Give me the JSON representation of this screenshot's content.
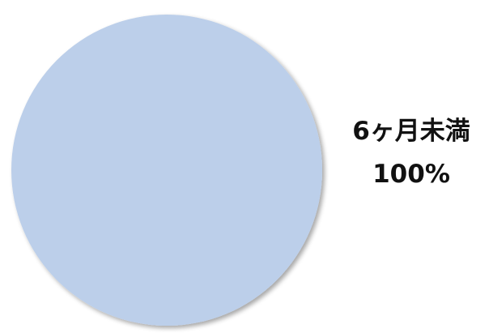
{
  "chart_data": {
    "type": "pie",
    "slices": [
      {
        "label": "6ヶ月未満",
        "value": 100,
        "value_label": "100%",
        "color": "#bccfea"
      }
    ],
    "title": "",
    "legend": "none",
    "data_labels": "outside-right"
  }
}
